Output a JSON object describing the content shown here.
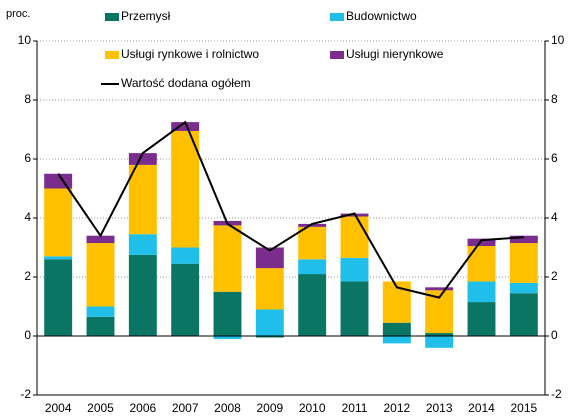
{
  "chart_data": {
    "type": "stacked_bar_line",
    "y_axis_label": "proc.",
    "categories": [
      "2004",
      "2005",
      "2006",
      "2007",
      "2008",
      "2009",
      "2010",
      "2011",
      "2012",
      "2013",
      "2014",
      "2015"
    ],
    "series": [
      {
        "name": "Przemysł",
        "color": "#0b7563",
        "values": [
          2.6,
          0.65,
          2.75,
          2.45,
          1.5,
          -0.05,
          2.1,
          1.85,
          0.45,
          0.1,
          1.15,
          1.45
        ]
      },
      {
        "name": "Budownictwo",
        "color": "#1fbfea",
        "values": [
          0.1,
          0.35,
          0.7,
          0.55,
          -0.1,
          0.9,
          0.5,
          0.8,
          -0.25,
          -0.4,
          0.7,
          0.35
        ]
      },
      {
        "name": "Usługi rynkowe i rolnictwo",
        "color": "#ffc000",
        "values": [
          2.3,
          2.15,
          2.35,
          3.95,
          2.25,
          1.4,
          1.1,
          1.4,
          1.4,
          1.45,
          1.2,
          1.35
        ]
      },
      {
        "name": "Usługi nierynkowe",
        "color": "#7b2d8e",
        "values": [
          0.5,
          0.25,
          0.4,
          0.3,
          0.15,
          0.7,
          0.1,
          0.1,
          0,
          0.1,
          0.25,
          0.25
        ]
      },
      {
        "name": "Wartość dodana ogółem",
        "color": "#000000",
        "type": "line",
        "values": [
          5.5,
          3.4,
          6.2,
          7.25,
          3.8,
          2.9,
          3.8,
          4.15,
          1.65,
          1.3,
          3.25,
          3.35
        ]
      }
    ],
    "ylim": [
      -2,
      10
    ],
    "yticks": [
      -2,
      0,
      2,
      4,
      6,
      8,
      10
    ],
    "grid": true
  }
}
